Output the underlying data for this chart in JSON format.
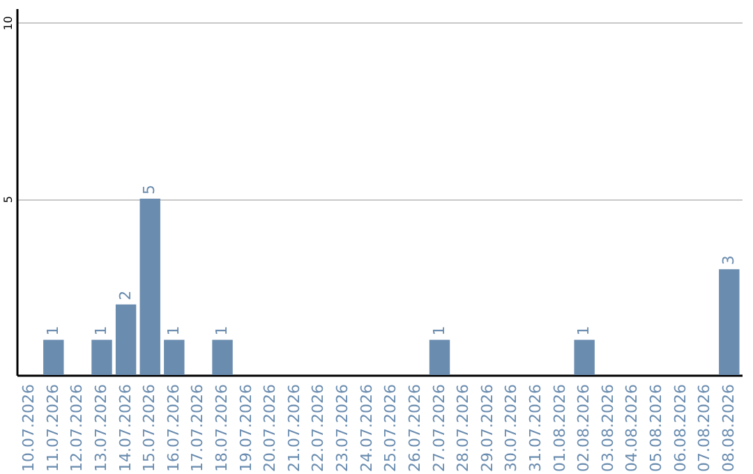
{
  "chart_data": {
    "type": "bar",
    "categories": [
      "10.07.2026",
      "11.07.2026",
      "12.07.2026",
      "13.07.2026",
      "14.07.2026",
      "15.07.2026",
      "16.07.2026",
      "17.07.2026",
      "18.07.2026",
      "19.07.2026",
      "20.07.2026",
      "21.07.2026",
      "22.07.2026",
      "23.07.2026",
      "24.07.2026",
      "25.07.2026",
      "26.07.2026",
      "27.07.2026",
      "28.07.2026",
      "29.07.2026",
      "30.07.2026",
      "31.07.2026",
      "01.08.2026",
      "02.08.2026",
      "03.08.2026",
      "04.08.2026",
      "05.08.2026",
      "06.08.2026",
      "07.08.2026",
      "08.08.2026"
    ],
    "values": [
      0,
      1,
      0,
      1,
      2,
      5,
      1,
      0,
      1,
      0,
      0,
      0,
      0,
      0,
      0,
      0,
      0,
      1,
      0,
      0,
      0,
      0,
      0,
      1,
      0,
      0,
      0,
      0,
      0,
      3
    ],
    "value_labels": [
      null,
      "1",
      null,
      "1",
      "2",
      "5",
      "1",
      null,
      "1",
      null,
      null,
      null,
      null,
      null,
      null,
      null,
      null,
      "1",
      null,
      null,
      null,
      null,
      null,
      "1",
      null,
      null,
      null,
      null,
      null,
      "3"
    ],
    "color": "#6a8caf",
    "ylim": [
      0,
      10.4
    ],
    "yticks": [
      {
        "value": 0,
        "label": null
      },
      5,
      10
    ],
    "grid": "y"
  }
}
